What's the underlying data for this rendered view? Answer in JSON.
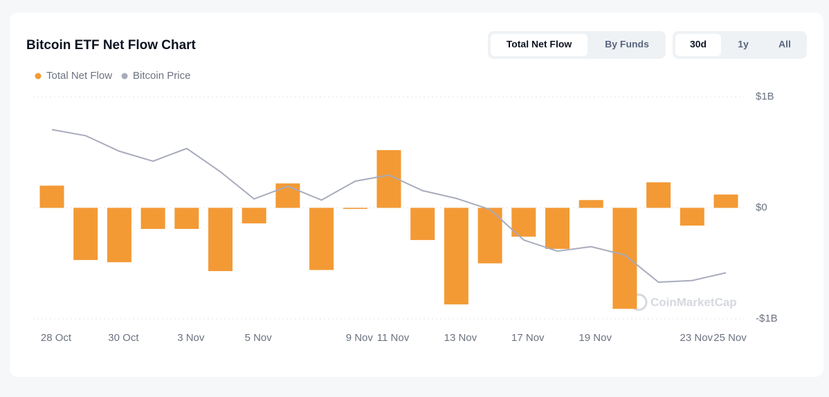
{
  "chart_data": {
    "type": "bar",
    "title": "Bitcoin ETF Net Flow Chart",
    "view_tabs": [
      "Total Net Flow",
      "By Funds"
    ],
    "range_tabs": [
      "30d",
      "1y",
      "All"
    ],
    "watermark": "CoinMarketCap",
    "categories": [
      "28 Oct",
      null,
      "30 Oct",
      null,
      "3 Nov",
      null,
      "5 Nov",
      null,
      null,
      "9 Nov",
      "11 Nov",
      null,
      "13 Nov",
      null,
      "17 Nov",
      null,
      "19 Nov",
      null,
      null,
      "23 Nov",
      "25 Nov"
    ],
    "series": [
      {
        "name": "Total Net Flow",
        "type": "bar",
        "color": "#f39a35",
        "values": [
          200000000,
          -470000000,
          -490000000,
          -190000000,
          -190000000,
          -570000000,
          -140000000,
          220000000,
          -560000000,
          -10000000,
          520000000,
          -290000000,
          -870000000,
          -500000000,
          -260000000,
          -370000000,
          70000000,
          -910000000,
          230000000,
          -160000000,
          120000000
        ]
      },
      {
        "name": "Bitcoin Price",
        "type": "line",
        "axis": "y2",
        "color": "#a8abbb",
        "values": [
          114100,
          113000,
          110200,
          108400,
          110700,
          106500,
          101600,
          103900,
          101400,
          104800,
          105900,
          103100,
          101700,
          99700,
          94200,
          92200,
          93000,
          91500,
          86600,
          86900,
          88300
        ]
      }
    ],
    "ylim": [
      -1000000000,
      1000000000
    ],
    "yticks": [
      {
        "value": 1000000000,
        "label": "$1B"
      },
      {
        "value": 0,
        "label": "$0"
      },
      {
        "value": -1000000000,
        "label": "-$1B"
      }
    ],
    "y2lim": [
      80000,
      120000
    ],
    "grid": true,
    "legend": "top-left"
  }
}
